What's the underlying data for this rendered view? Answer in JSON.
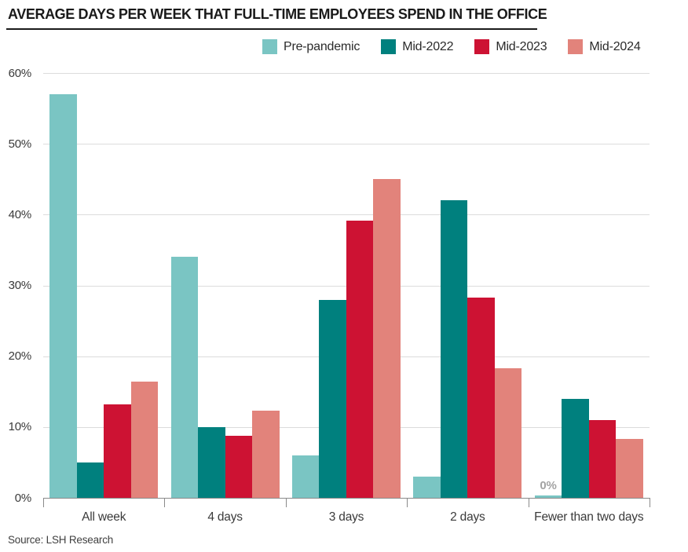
{
  "chart_data": {
    "type": "bar",
    "title": "AVERAGE DAYS PER WEEK THAT FULL-TIME EMPLOYEES SPEND IN THE OFFICE",
    "source": "Source: LSH Research",
    "categories": [
      "All week",
      "4 days",
      "3 days",
      "2 days",
      "Fewer than two days"
    ],
    "series": [
      {
        "name": "Pre-pandemic",
        "color": "#7AC5C3",
        "values": [
          57,
          34,
          6,
          3,
          0
        ]
      },
      {
        "name": "Mid-2022",
        "color": "#00807E",
        "values": [
          5,
          10,
          28,
          42,
          14
        ]
      },
      {
        "name": "Mid-2023",
        "color": "#CD1233",
        "values": [
          13.2,
          8.8,
          39.2,
          28.3,
          11
        ]
      },
      {
        "name": "Mid-2024",
        "color": "#E2837B",
        "values": [
          16.4,
          12.3,
          45,
          18.3,
          8.3
        ]
      }
    ],
    "xlabel": "",
    "ylabel": "",
    "ylim": [
      0,
      60
    ],
    "ytick_step": 10,
    "ytick_labels": [
      "0%",
      "10%",
      "20%",
      "30%",
      "40%",
      "50%",
      "60%"
    ],
    "grid": true,
    "legend_position": "top",
    "annotations": [
      {
        "text": "0%",
        "category": "Fewer than two days",
        "series": "Pre-pandemic"
      }
    ],
    "colors": {
      "gridline": "#DCDCDC",
      "axis": "#8A8A8A",
      "title": "#1A1A1A",
      "tick_label": "#3A3A3A",
      "annotation": "#A3A3A3",
      "source": "#404040"
    }
  }
}
